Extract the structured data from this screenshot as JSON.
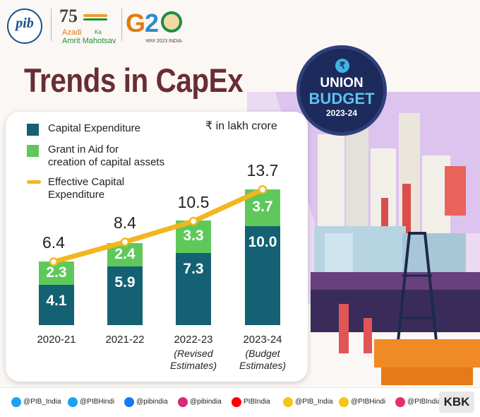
{
  "header": {
    "logos": {
      "pib": "pib",
      "azadi_line1": "Azadi",
      "azadi_ka": "Ka",
      "azadi_line2": "Amrit Mahotsav",
      "azadi_number": "75",
      "g20_g": "G",
      "g20_2": "2",
      "g20_sub": "भारत 2023 INDIA"
    },
    "title": "Trends in CapEx"
  },
  "badge": {
    "line1": "UNION",
    "line2": "BUDGET",
    "line3": "2023-24",
    "icon_glyph": "₹"
  },
  "colors": {
    "capex": "#136173",
    "grant": "#5ec95a",
    "effective": "#f2b61f",
    "title": "#6a2c34"
  },
  "chart_data": {
    "type": "bar",
    "stacked": true,
    "unit_label": "₹ in lakh crore",
    "categories": [
      "2020-21",
      "2021-22",
      "2022-23",
      "2023-24"
    ],
    "category_notes": [
      "",
      "",
      "(Revised Estimates)",
      "(Budget Estimates)"
    ],
    "series": [
      {
        "name": "Capital Expenditure",
        "values": [
          4.1,
          5.9,
          7.3,
          10.0
        ],
        "labels": [
          "4.1",
          "5.9",
          "7.3",
          "10.0"
        ]
      },
      {
        "name": "Grant in Aid for creation of capital assets",
        "values": [
          2.3,
          2.4,
          3.3,
          3.7
        ],
        "labels": [
          "2.3",
          "2.4",
          "3.3",
          "3.7"
        ]
      }
    ],
    "line": {
      "name": "Effective Capital Expenditure",
      "values": [
        6.4,
        8.4,
        10.5,
        13.7
      ],
      "labels": [
        "6.4",
        "8.4",
        "10.5",
        "13.7"
      ]
    },
    "legend": [
      {
        "name": "Capital Expenditure",
        "lines": [
          "Capital Expenditure"
        ]
      },
      {
        "name": "Grant in Aid for creation of capital assets",
        "lines": [
          "Grant in Aid for",
          "creation of capital assets"
        ]
      },
      {
        "name": "Effective Capital Expenditure",
        "lines": [
          "Effective Capital",
          "Expenditure"
        ]
      }
    ],
    "note_lines": [
      [
        "",
        ""
      ],
      [
        "",
        ""
      ],
      [
        "(Revised",
        "Estimates)"
      ],
      [
        "(Budget",
        "Estimates)"
      ]
    ],
    "ylim": [
      0,
      14
    ],
    "legend_position": "top-left"
  },
  "footer": {
    "handles": [
      {
        "icon": "twitter-icon",
        "color": "#1da1f2",
        "text": "@PIB_India"
      },
      {
        "icon": "twitter-icon",
        "color": "#1da1f2",
        "text": "@PIBHindi"
      },
      {
        "icon": "facebook-icon",
        "color": "#1877f2",
        "text": "@pibindia"
      },
      {
        "icon": "instagram-icon",
        "color": "#d62976",
        "text": "@pibindia"
      },
      {
        "icon": "youtube-icon",
        "color": "#ff0000",
        "text": "PIBIndia"
      },
      {
        "icon": "koo-icon",
        "color": "#f5c518",
        "text": "@PIB_India"
      },
      {
        "icon": "koo-icon",
        "color": "#f5c518",
        "text": "@PIBHindi"
      },
      {
        "icon": "sharechat-icon",
        "color": "#e2306c",
        "text": "@PIBIndia"
      }
    ],
    "kbk": "KBK"
  }
}
